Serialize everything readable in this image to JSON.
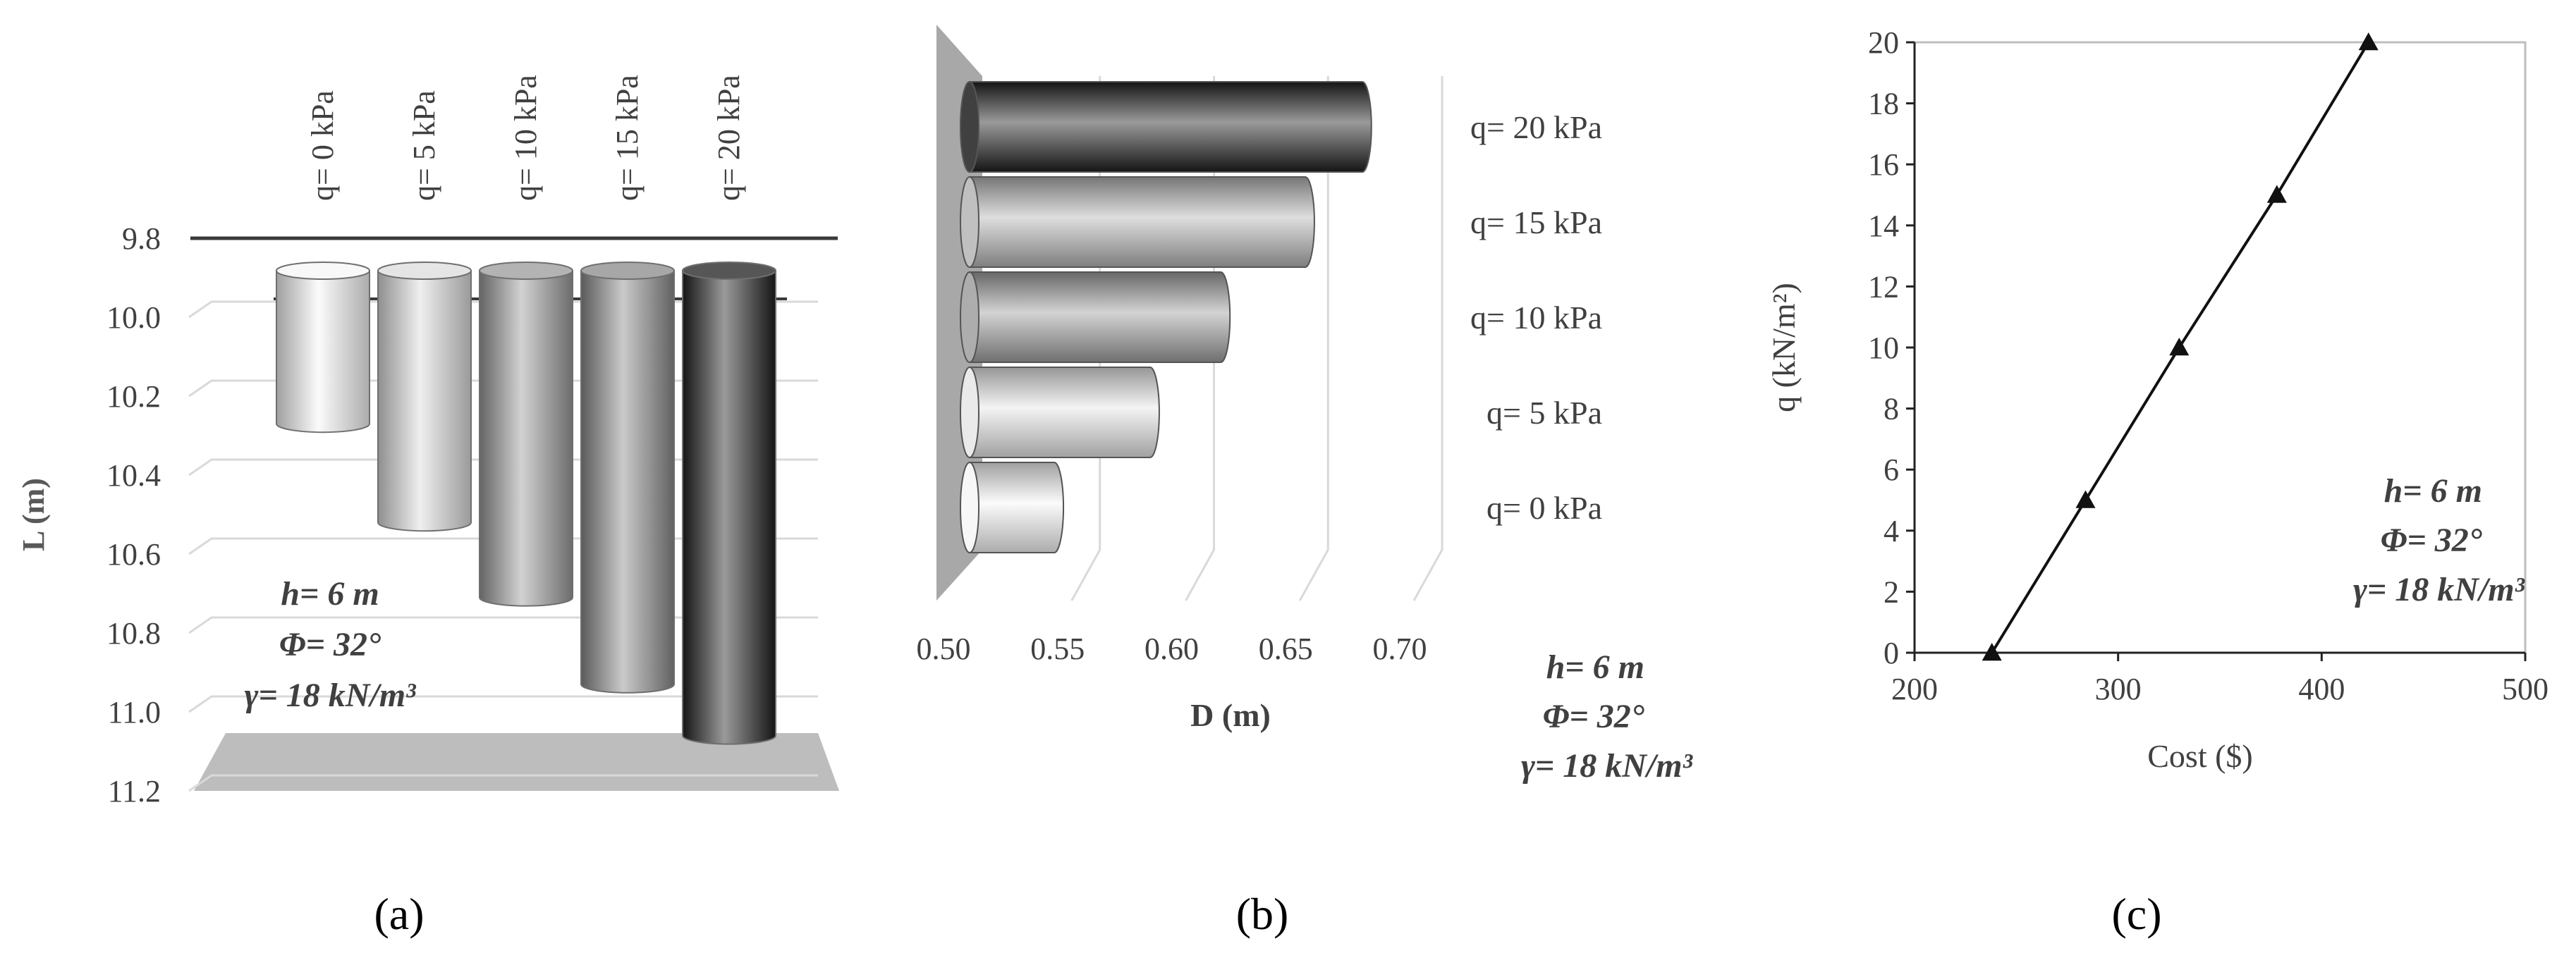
{
  "panel_labels": [
    "(a)",
    "(b)",
    "(c)"
  ],
  "annotation": {
    "line1": "h= 6 m",
    "line2": "Φ= 32°",
    "line3": "γ= 18 kN/m³"
  },
  "chart_data": [
    {
      "id": "a",
      "type": "bar",
      "orientation": "vertical-3d-cylinder",
      "categories": [
        "q= 0 kPa",
        "q= 5 kPa",
        "q= 10 kPa",
        "q= 15 kPa",
        "q= 20 kPa"
      ],
      "values": [
        10.27,
        10.52,
        10.71,
        10.93,
        11.06
      ],
      "ylabel": "L (m)",
      "ylim": [
        9.8,
        11.2
      ],
      "yticks": [
        "9.8",
        "10.0",
        "10.2",
        "10.4",
        "10.6",
        "10.8",
        "11.0",
        "11.2"
      ],
      "y_inverted": true,
      "colors": [
        "#f6f6f6",
        "#dcdcdc",
        "#9a9a9a",
        "#8a8a8a",
        "#1e1e1e"
      ],
      "grid": true
    },
    {
      "id": "b",
      "type": "bar",
      "orientation": "horizontal-3d-cylinder",
      "categories": [
        "q= 20 kPa",
        "q= 15 kPa",
        "q= 10 kPa",
        "q= 5 kPa",
        "q= 0 kPa"
      ],
      "values": [
        0.665,
        0.64,
        0.603,
        0.572,
        0.53
      ],
      "xlabel": "D (m)",
      "xlim": [
        0.5,
        0.7
      ],
      "xticks": [
        "0.50",
        "0.55",
        "0.60",
        "0.65",
        "0.70"
      ],
      "colors": [
        "#1e1e1e",
        "#b5b5b5",
        "#9e9e9e",
        "#e6e6e6",
        "#f6f6f6"
      ],
      "grid": true
    },
    {
      "id": "c",
      "type": "line",
      "x": [
        238,
        284,
        330,
        378,
        423
      ],
      "y": [
        0,
        5,
        10,
        15,
        20
      ],
      "xlabel": "Cost ($)",
      "ylabel": "q  (kN/m²)",
      "xlim": [
        200,
        500
      ],
      "ylim": [
        0,
        20
      ],
      "xticks": [
        "200",
        "300",
        "400",
        "500"
      ],
      "yticks": [
        "0",
        "2",
        "4",
        "6",
        "8",
        "10",
        "12",
        "14",
        "16",
        "18",
        "20"
      ],
      "marker": "triangle",
      "grid": false
    }
  ]
}
